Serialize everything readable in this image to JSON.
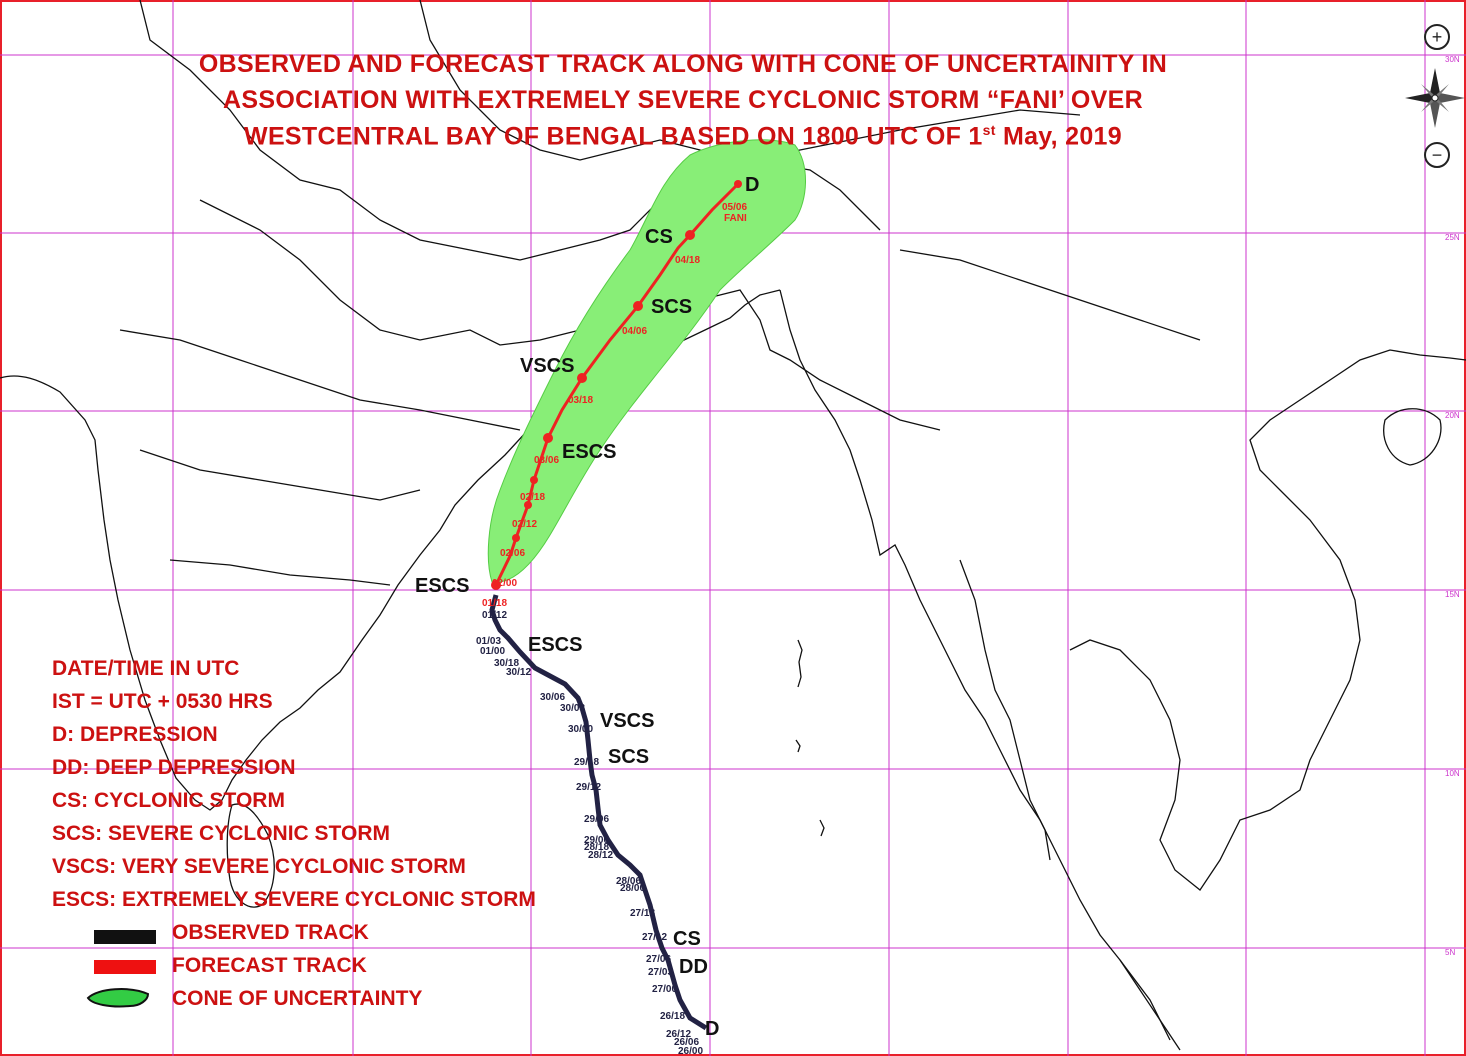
{
  "title": {
    "line1": "OBSERVED AND FORECAST TRACK ALONG WITH CONE OF UNCERTAINITY IN",
    "line2": "ASSOCIATION WITH EXTREMELY SEVERE CYCLONIC STORM “FANI’ OVER",
    "line3_pre": "WESTCENTRAL BAY OF BENGAL BASED ON 1800 UTC OF 1",
    "line3_sup": "st",
    "line3_post": " May, 2019"
  },
  "legend": {
    "lines": [
      "DATE/TIME IN UTC",
      "IST = UTC + 0530 HRS",
      "D: DEPRESSION",
      "DD: DEEP DEPRESSION",
      "CS: CYCLONIC STORM",
      "SCS: SEVERE CYCLONIC STORM",
      "VSCS: VERY SEVERE CYCLONIC STORM",
      "ESCS: EXTREMELY SEVERE CYCLONIC STORM"
    ],
    "keys": [
      {
        "label": "OBSERVED TRACK",
        "color": "#111111"
      },
      {
        "label": "FORECAST TRACK",
        "color": "#ee1111"
      },
      {
        "label": "CONE OF UNCERTAINTY",
        "color": "#33cc44"
      }
    ]
  },
  "grid_labels": [
    "30N",
    "25N",
    "20N",
    "15N",
    "10N",
    "5N"
  ],
  "controls": {
    "zoom_in": "+",
    "zoom_out": "−",
    "compass": "compass-rose-icon"
  },
  "storm_name": "FANI",
  "intensity_labels": [
    "D",
    "CS",
    "SCS",
    "VSCS",
    "ESCS",
    "ESCS",
    "ESCS",
    "VSCS",
    "SCS",
    "CS",
    "DD",
    "D"
  ],
  "forecast_times": [
    "05/06",
    "04/18",
    "04/06",
    "03/18",
    "03/06",
    "02/18",
    "02/12",
    "02/06",
    "02/00"
  ],
  "observed_times": [
    "01/18",
    "01/12",
    "01/03",
    "01/00",
    "30/18",
    "30/12",
    "30/06",
    "30/03",
    "30/00",
    "29/18",
    "29/12",
    "29/06",
    "29/00",
    "28/18",
    "28/12",
    "28/06",
    "28/00",
    "27/18",
    "27/12",
    "27/06",
    "27/03",
    "27/00",
    "26/18",
    "26/12",
    "26/06",
    "26/00"
  ],
  "colors": {
    "border": "#e8202a",
    "title": "#cc1111",
    "grid": "#cc33cc",
    "cone": "#88ee77",
    "forecast": "#ee2222",
    "observed": "#222244",
    "land": "#111111"
  }
}
